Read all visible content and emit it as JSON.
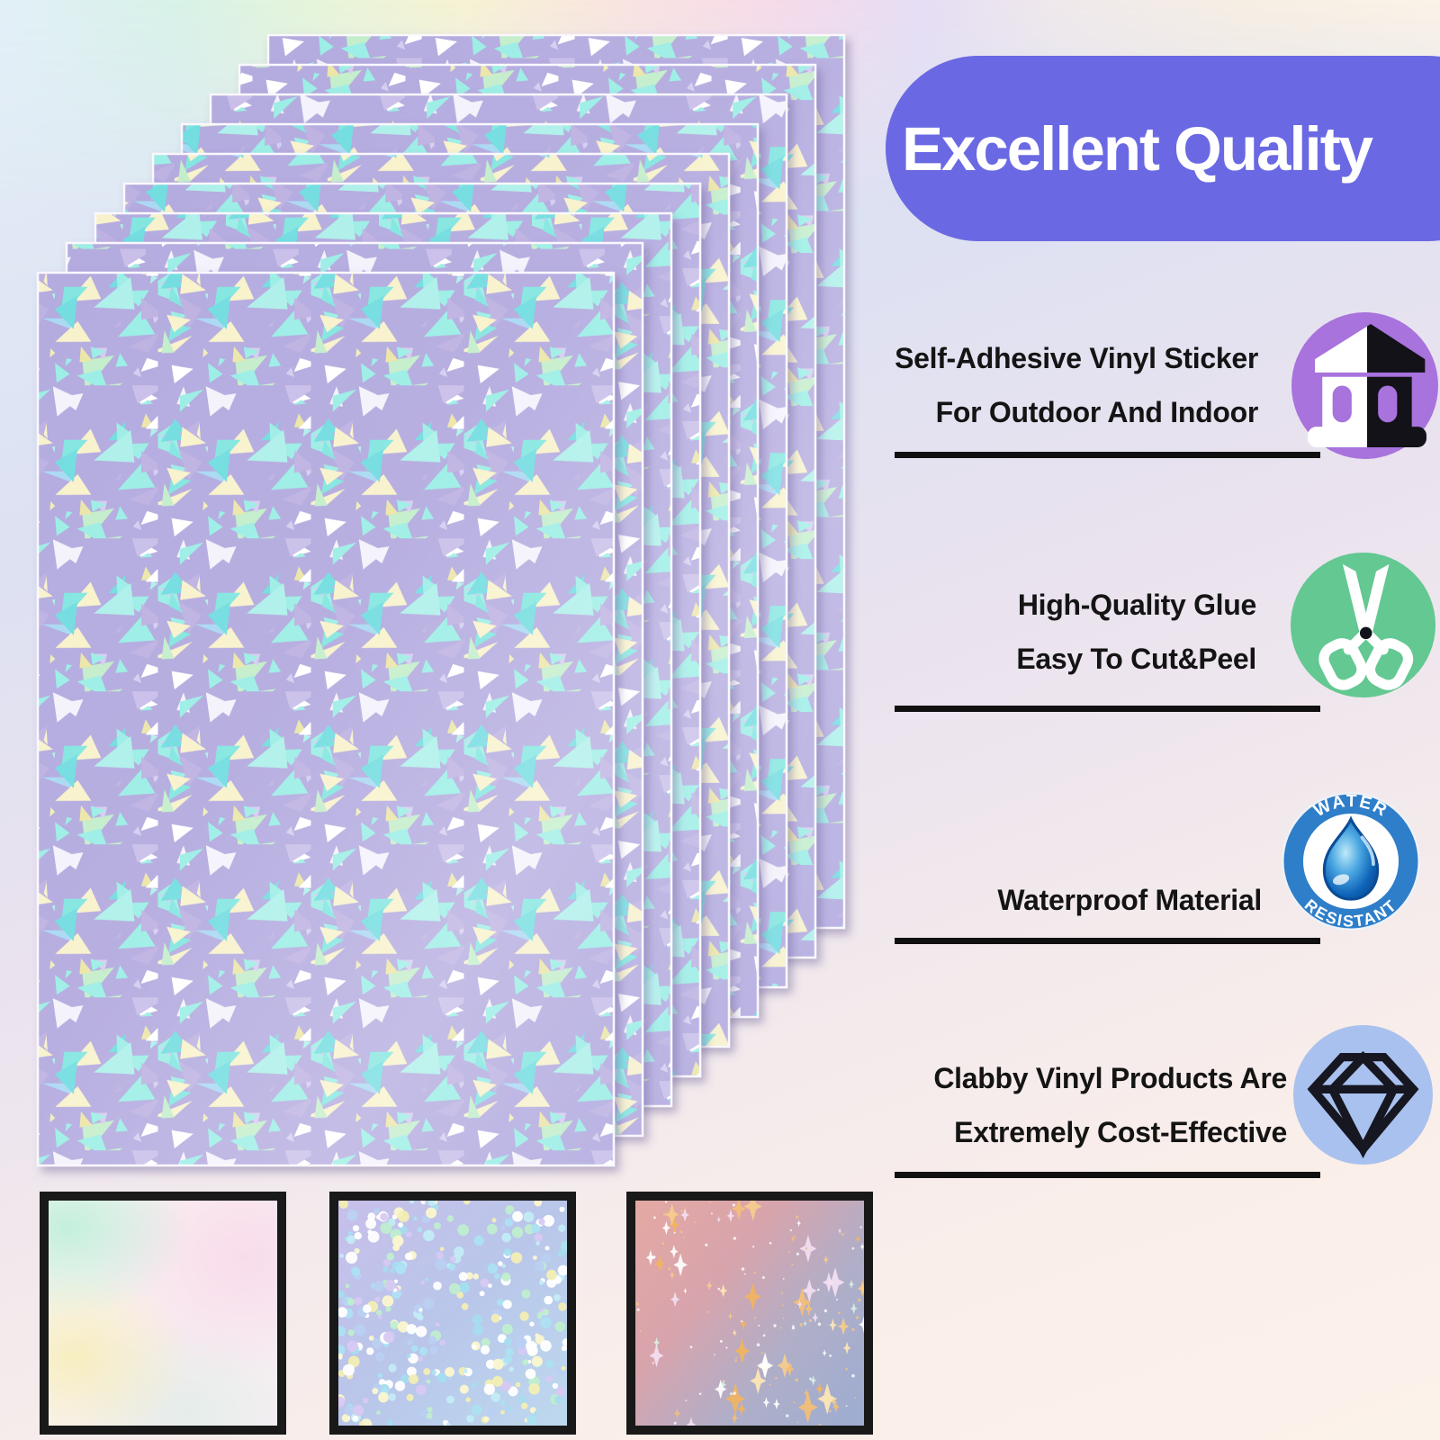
{
  "header": {
    "title": "Excellent Quality"
  },
  "features": [
    {
      "line1": "Self-Adhesive Vinyl Sticker",
      "line2": "For Outdoor And Indoor",
      "icon": "building-icon",
      "icon_bg": "#a873dc"
    },
    {
      "line1": "High-Quality Glue",
      "line2": "Easy To Cut&Peel",
      "icon": "scissors-icon",
      "icon_bg": "#63c892"
    },
    {
      "line1": "Waterproof Material",
      "icon": "water-resistant-badge",
      "icon_bg": "#2e7ec9",
      "badge_top": "WATER",
      "badge_bottom": "RESISTANT"
    },
    {
      "line1": "Clabby Vinyl Products Are",
      "line2": "Extremely Cost-Effective",
      "icon": "diamond-icon",
      "icon_bg": "#a9c1ee"
    }
  ],
  "product": {
    "sheet_count": 9,
    "pattern": "cracked-ice holographic triangle shards",
    "sheet_base_color": "#b4abdf",
    "shard_colors": [
      "#84e6e0",
      "#9ceee6",
      "#73dde0",
      "#aff0ea",
      "#f2edb8",
      "#f8f2cc",
      "#ece6a8",
      "#ffffff",
      "#ffffff",
      "#f4f2fb",
      "#c9bfe9",
      "#beb2e2",
      "#d6cdf0",
      "#aad9f3",
      "#c4eecb"
    ]
  },
  "swatches": [
    {
      "name": "plain-holographic-rainbow"
    },
    {
      "name": "holographic-glitter-dots",
      "base_colors": [
        "#c7bfea",
        "#b9c6ea",
        "#bdd9ee"
      ],
      "dot_colors": [
        "#c2ecf6",
        "#ace2f2",
        "#a5ddef",
        "#f2eeb4",
        "#fbf7cf",
        "#ffffff",
        "#ffffff",
        "#b9d0f2",
        "#d7c9f2",
        "#bfeecf"
      ]
    },
    {
      "name": "holographic-star-sparkle",
      "base_colors": [
        "#e2a8a4",
        "#d8a4ac",
        "#b0aec8",
        "#9fadd0"
      ],
      "star_colors": [
        "#f4bf78",
        "#f6cd8c",
        "#f2b45e",
        "#ffffff",
        "#ffe6b4",
        "#d6efe4",
        "#f4dff2"
      ]
    }
  ],
  "colors": {
    "title_pill": "#6a69e3",
    "text": "#141414",
    "underline": "#101010",
    "badge_ring": "#2e7ec9",
    "badge_drop_dark": "#0b4c96",
    "badge_drop_light": "#bfe9fa"
  }
}
